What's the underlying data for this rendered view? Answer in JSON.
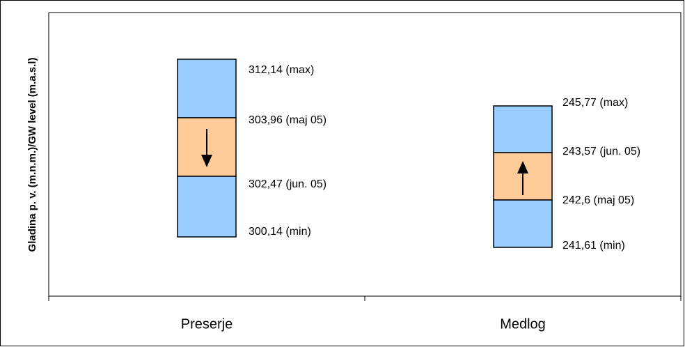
{
  "y_axis_label": "Gladina p. v. (m.n.m.)/GW level (m.a.s.l)",
  "groups": [
    {
      "name": "Preserje",
      "levels": [
        "312,14 (max)",
        "303,96 (maj 05)",
        "302,47 (jun. 05)",
        "300,14 (min)"
      ]
    },
    {
      "name": "Medlog",
      "levels": [
        "245,77 (max)",
        "243,57 (jun. 05)",
        "242,6 (maj 05)",
        "241,61 (min)"
      ]
    }
  ]
}
